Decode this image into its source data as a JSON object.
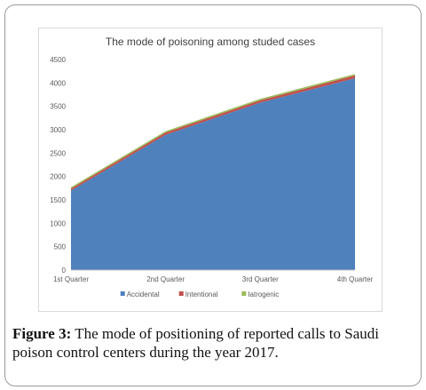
{
  "chart_data": {
    "type": "area",
    "stacked": true,
    "title": "The mode of poisoning among studed cases",
    "categories": [
      "1st Quarter",
      "2nd Quarter",
      "3rd Quarter",
      "4th Quarter"
    ],
    "ylim": [
      0,
      4500
    ],
    "yticks": [
      0,
      500,
      1000,
      1500,
      2000,
      2500,
      3000,
      3500,
      4000,
      4500
    ],
    "grid": false,
    "legend_position": "bottom",
    "series": [
      {
        "name": "Accidental",
        "color": "#4f81bd",
        "values": [
          1700,
          2890,
          3580,
          4100
        ]
      },
      {
        "name": "Intentional",
        "color": "#c0504d",
        "values": [
          40,
          50,
          50,
          60
        ]
      },
      {
        "name": "Iatrogenic",
        "color": "#9bbb59",
        "values": [
          30,
          30,
          30,
          30
        ]
      }
    ]
  },
  "caption": {
    "label": "Figure 3:",
    "text": " The mode of positioning of reported calls to Saudi poison control centers during the year 2017."
  }
}
